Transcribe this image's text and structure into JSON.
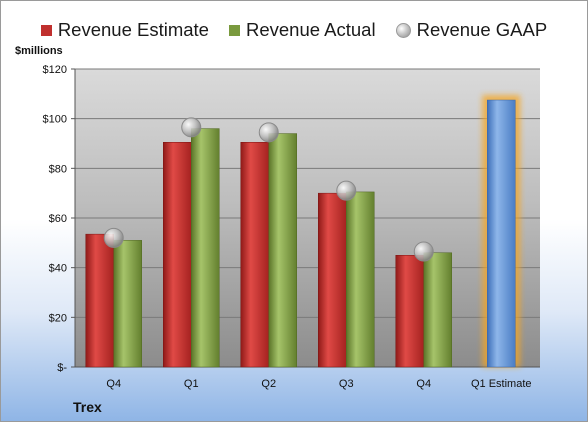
{
  "chart_data": {
    "type": "bar",
    "ylabel": "$millions",
    "categories": [
      "Q4",
      "Q1",
      "Q2",
      "Q3",
      "Q4",
      "Q1 Estimate"
    ],
    "series": [
      {
        "name": "Revenue Estimate",
        "values": [
          53.5,
          90.5,
          90.5,
          70.0,
          45.0,
          107.5
        ],
        "color": "#c0302e"
      },
      {
        "name": "Revenue Actual",
        "values": [
          51.0,
          96.0,
          94.0,
          70.5,
          46.0,
          null
        ],
        "color": "#7a9a3e"
      },
      {
        "name": "Revenue GAAP",
        "values": [
          52.0,
          96.5,
          94.5,
          71.0,
          46.5,
          null
        ],
        "color": "#a8a8a8"
      }
    ],
    "ylim": [
      0,
      120
    ],
    "yticks": [
      0,
      20,
      40,
      60,
      80,
      100,
      120
    ],
    "ytick_labels": [
      "$-",
      "$20",
      "$40",
      "$60",
      "$80",
      "$100",
      "$120"
    ],
    "highlight_color": "#5b8fd6",
    "grid": true,
    "legend_position": "top"
  },
  "company": "Trex"
}
